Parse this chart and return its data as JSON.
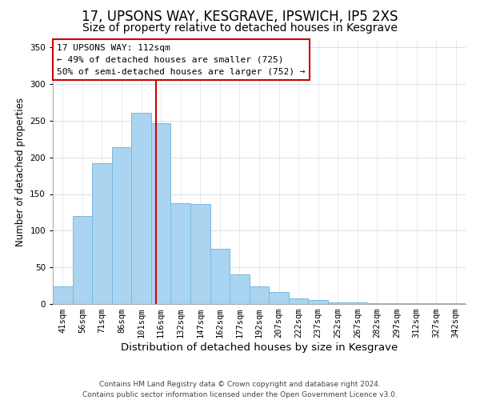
{
  "title": "17, UPSONS WAY, KESGRAVE, IPSWICH, IP5 2XS",
  "subtitle": "Size of property relative to detached houses in Kesgrave",
  "xlabel": "Distribution of detached houses by size in Kesgrave",
  "ylabel": "Number of detached properties",
  "bar_labels": [
    "41sqm",
    "56sqm",
    "71sqm",
    "86sqm",
    "101sqm",
    "116sqm",
    "132sqm",
    "147sqm",
    "162sqm",
    "177sqm",
    "192sqm",
    "207sqm",
    "222sqm",
    "237sqm",
    "252sqm",
    "267sqm",
    "282sqm",
    "297sqm",
    "312sqm",
    "327sqm",
    "342sqm"
  ],
  "bar_heights": [
    24,
    120,
    192,
    214,
    261,
    247,
    137,
    136,
    75,
    40,
    24,
    16,
    8,
    5,
    2,
    2,
    1,
    1,
    1,
    1,
    1
  ],
  "bar_color": "#aad4f0",
  "bar_edge_color": "#7ab8e0",
  "vline_color": "#cc0000",
  "vline_pos": 4.73,
  "annotation_title": "17 UPSONS WAY: 112sqm",
  "annotation_line1": "← 49% of detached houses are smaller (725)",
  "annotation_line2": "50% of semi-detached houses are larger (752) →",
  "annotation_box_color": "#ffffff",
  "annotation_box_edge": "#cc0000",
  "ylim": [
    0,
    360
  ],
  "yticks": [
    0,
    50,
    100,
    150,
    200,
    250,
    300,
    350
  ],
  "footer_line1": "Contains HM Land Registry data © Crown copyright and database right 2024.",
  "footer_line2": "Contains public sector information licensed under the Open Government Licence v3.0.",
  "title_fontsize": 12,
  "subtitle_fontsize": 10,
  "xlabel_fontsize": 9.5,
  "ylabel_fontsize": 8.5,
  "tick_fontsize": 7.5,
  "ann_fontsize": 8,
  "footer_fontsize": 6.5,
  "grid_color": "#d0dde8"
}
